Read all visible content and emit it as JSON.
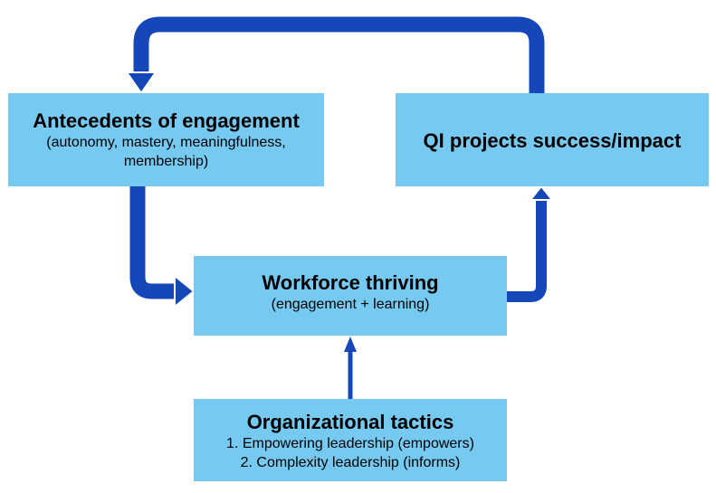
{
  "diagram": {
    "colors": {
      "box_fill": "#76c9f0",
      "arrow_fill": "#1547b8",
      "arrow_outline": "#ffffff"
    },
    "nodes": {
      "antecedents": {
        "title": "Antecedents of engagement",
        "subtitle": "(autonomy, mastery, meaningfulness, membership)"
      },
      "qi": {
        "title": "QI projects success/impact"
      },
      "thriving": {
        "title": "Workforce thriving",
        "subtitle": "(engagement + learning)"
      },
      "tactics": {
        "title": "Organizational tactics",
        "items": [
          "1. Empowering leadership (empowers)",
          "2. Complexity leadership (informs)"
        ]
      }
    },
    "edges": [
      {
        "from": "qi",
        "to": "antecedents"
      },
      {
        "from": "antecedents",
        "to": "thriving"
      },
      {
        "from": "thriving",
        "to": "qi"
      },
      {
        "from": "tactics",
        "to": "thriving"
      }
    ]
  }
}
